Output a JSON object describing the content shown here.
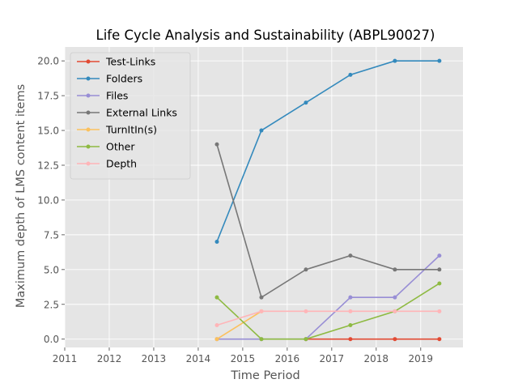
{
  "chart_data": {
    "type": "line",
    "title": "Life Cycle Analysis and Sustainability (ABPL90027)",
    "xlabel": "Time Period",
    "ylabel": "Maximum depth of LMS content items",
    "xlim": [
      2011.0,
      2019.95
    ],
    "ylim": [
      -0.6,
      21.0
    ],
    "xticks": [
      2011,
      2012,
      2013,
      2014,
      2015,
      2016,
      2017,
      2018,
      2019
    ],
    "xtick_labels": [
      "2011",
      "2012",
      "2013",
      "2014",
      "2015",
      "2016",
      "2017",
      "2018",
      "2019"
    ],
    "yticks": [
      0.0,
      2.5,
      5.0,
      7.5,
      10.0,
      12.5,
      15.0,
      17.5,
      20.0
    ],
    "ytick_labels": [
      "0.0",
      "2.5",
      "5.0",
      "7.5",
      "10.0",
      "12.5",
      "15.0",
      "17.5",
      "20.0"
    ],
    "x": [
      2014.42,
      2015.42,
      2016.42,
      2017.42,
      2018.42,
      2019.42
    ],
    "grid": true,
    "legend_position": "top-left",
    "series": [
      {
        "name": "Test-Links",
        "color": "#E24A33",
        "values": [
          null,
          null,
          0,
          0,
          0,
          0
        ]
      },
      {
        "name": "Folders",
        "color": "#348ABD",
        "values": [
          7,
          15,
          17,
          19,
          20,
          20
        ]
      },
      {
        "name": "Files",
        "color": "#988ED5",
        "values": [
          0,
          0,
          0,
          3,
          3,
          6
        ]
      },
      {
        "name": "External Links",
        "color": "#777777",
        "values": [
          14,
          3,
          5,
          6,
          5,
          5
        ]
      },
      {
        "name": "TurnItIn(s)",
        "color": "#FBC15E",
        "values": [
          0,
          2,
          null,
          null,
          null,
          null
        ]
      },
      {
        "name": "Other",
        "color": "#8EBA42",
        "values": [
          3,
          0,
          0,
          1,
          2,
          4
        ]
      },
      {
        "name": "Depth",
        "color": "#FFB5B8",
        "values": [
          1,
          2,
          2,
          2,
          2,
          2
        ]
      }
    ]
  }
}
